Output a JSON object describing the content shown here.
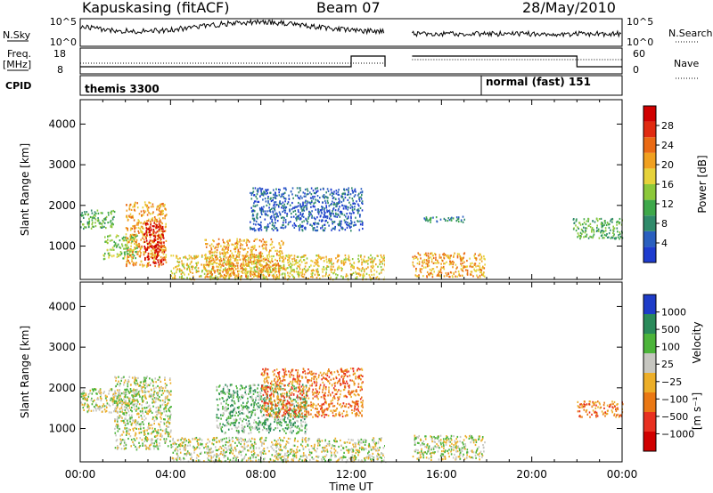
{
  "header": {
    "station": "Kapuskasing (fitACF)",
    "beam": "Beam 07",
    "date": "28/May/2010"
  },
  "left_labels": {
    "nsky": "N.Sky",
    "freq": "Freq.",
    "freq_unit": "[MHz]",
    "cpid": "CPID"
  },
  "right_labels": {
    "nsearch": "N.Search",
    "nave": "Nave"
  },
  "noise_axis": {
    "top": "10^5",
    "bottom": "10^0"
  },
  "freq_axis": {
    "top": "18",
    "bottom": "8"
  },
  "nave_axis": {
    "top": "60",
    "bottom": "0"
  },
  "cpid_segments": [
    "themis 3300",
    "normal (fast) 151"
  ],
  "colors": {
    "power_scale": [
      "#1e3ccf",
      "#2a5fbf",
      "#2f8a6a",
      "#3ea84a",
      "#8cc83a",
      "#e6d23a",
      "#f0a020",
      "#ea6a14",
      "#e02a10",
      "#d00000"
    ],
    "velocity_scale": [
      "#1e3cc8",
      "#2a8a5a",
      "#4cb43a",
      "#c6c6c0",
      "#ecae28",
      "#ea7814",
      "#e83020",
      "#d00000"
    ]
  },
  "chart_data": [
    {
      "type": "heatmap",
      "title": "Power",
      "xlabel": "Time UT",
      "ylabel": "Slant Range [km]",
      "x_ticks": [
        "00:00",
        "04:00",
        "08:00",
        "12:00",
        "16:00",
        "20:00",
        "00:00"
      ],
      "xlim_hours": [
        0,
        24
      ],
      "y_ticks": [
        1000,
        2000,
        3000,
        4000
      ],
      "ylim_km": [
        180,
        4600
      ],
      "colorbar_label": "Power [dB]",
      "colorbar_ticks": [
        "4",
        "8",
        "12",
        "16",
        "20",
        "24",
        "28"
      ],
      "data_gaps_hours": [
        [
          13.5,
          14.7
        ]
      ],
      "echo_regions": [
        {
          "t0": 0.0,
          "t1": 1.5,
          "r0": 1450,
          "r1": 1900,
          "level": 3
        },
        {
          "t0": 1.0,
          "t1": 2.5,
          "r0": 700,
          "r1": 1300,
          "level": 4
        },
        {
          "t0": 2.0,
          "t1": 3.8,
          "r0": 500,
          "r1": 2100,
          "level": 6
        },
        {
          "t0": 2.8,
          "t1": 3.7,
          "r0": 550,
          "r1": 1600,
          "level": 9
        },
        {
          "t0": 4.0,
          "t1": 13.5,
          "r0": 200,
          "r1": 800,
          "level": 5
        },
        {
          "t0": 5.5,
          "t1": 9.0,
          "r0": 250,
          "r1": 1200,
          "level": 6
        },
        {
          "t0": 7.5,
          "t1": 12.5,
          "r0": 1400,
          "r1": 2450,
          "level": 1
        },
        {
          "t0": 14.7,
          "t1": 17.9,
          "r0": 250,
          "r1": 850,
          "level": 6
        },
        {
          "t0": 15.2,
          "t1": 17.0,
          "r0": 1600,
          "r1": 1750,
          "level": 2
        },
        {
          "t0": 21.8,
          "t1": 24.0,
          "r0": 1200,
          "r1": 1700,
          "level": 3
        }
      ]
    },
    {
      "type": "heatmap",
      "title": "Velocity",
      "xlabel": "Time UT",
      "ylabel": "Slant Range [km]",
      "x_ticks": [
        "00:00",
        "04:00",
        "08:00",
        "12:00",
        "16:00",
        "20:00",
        "00:00"
      ],
      "xlim_hours": [
        0,
        24
      ],
      "y_ticks": [
        1000,
        2000,
        3000,
        4000
      ],
      "ylim_km": [
        180,
        4600
      ],
      "colorbar_label": "Velocity",
      "colorbar_unit": "[m s⁻¹]",
      "colorbar_ticks": [
        "1000",
        "500",
        "100",
        "25",
        "−25",
        "−100",
        "−500",
        "−1000"
      ],
      "data_gaps_hours": [
        [
          13.5,
          14.7
        ]
      ],
      "echo_regions": [
        {
          "t0": 0.0,
          "t1": 2.5,
          "r0": 1400,
          "r1": 2000,
          "level": 3
        },
        {
          "t0": 1.5,
          "t1": 4.0,
          "r0": 500,
          "r1": 2300,
          "level": 3
        },
        {
          "t0": 4.0,
          "t1": 13.5,
          "r0": 200,
          "r1": 800,
          "level": 3
        },
        {
          "t0": 6.0,
          "t1": 10.0,
          "r0": 900,
          "r1": 2100,
          "level": 2
        },
        {
          "t0": 8.0,
          "t1": 12.5,
          "r0": 1300,
          "r1": 2500,
          "level": 5
        },
        {
          "t0": 14.7,
          "t1": 17.9,
          "r0": 250,
          "r1": 850,
          "level": 3
        },
        {
          "t0": 22.0,
          "t1": 24.0,
          "r0": 1300,
          "r1": 1700,
          "level": 5
        }
      ]
    }
  ]
}
